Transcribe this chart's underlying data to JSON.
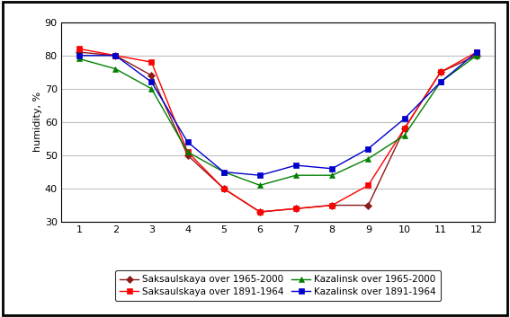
{
  "saks_1965_2000": [
    81,
    80,
    74,
    50,
    40,
    33,
    34,
    35,
    35,
    58,
    75,
    80
  ],
  "saks_1891_1964": [
    82,
    80,
    78,
    51,
    40,
    33,
    34,
    35,
    41,
    58,
    75,
    81
  ],
  "kaz_1965_2000": [
    79,
    76,
    70,
    51,
    45,
    41,
    44,
    44,
    49,
    56,
    72,
    80
  ],
  "kaz_1891_1964": [
    80,
    80,
    72,
    54,
    45,
    44,
    47,
    46,
    52,
    61,
    72,
    81
  ],
  "x": [
    1,
    2,
    3,
    4,
    5,
    6,
    7,
    8,
    9,
    10,
    11,
    12
  ],
  "ylim": [
    30,
    90
  ],
  "yticks": [
    30,
    40,
    50,
    60,
    70,
    80,
    90
  ],
  "xlim": [
    0.5,
    12.5
  ],
  "xticks": [
    1,
    2,
    3,
    4,
    5,
    6,
    7,
    8,
    9,
    10,
    11,
    12
  ],
  "ylabel": "humidity, %",
  "colors": {
    "saks_1965_2000": "#8B1A1A",
    "saks_1891_1964": "#FF0000",
    "kaz_1965_2000": "#008000",
    "kaz_1891_1964": "#0000CD"
  },
  "markers": {
    "saks_1965_2000": "D",
    "saks_1891_1964": "s",
    "kaz_1965_2000": "^",
    "kaz_1891_1964": "s"
  },
  "legend_labels": [
    "Saksaulskaya over 1965-2000",
    "Saksaulskaya over 1891-1964",
    "Kazalinsk over 1965-2000",
    "Kazalinsk over 1891-1964"
  ],
  "legend_order": [
    0,
    1,
    2,
    3
  ],
  "background_color": "#FFFFFF",
  "outer_bg": "#FFFFFF",
  "grid_color": "#C0C0C0",
  "border_color": "#000000"
}
